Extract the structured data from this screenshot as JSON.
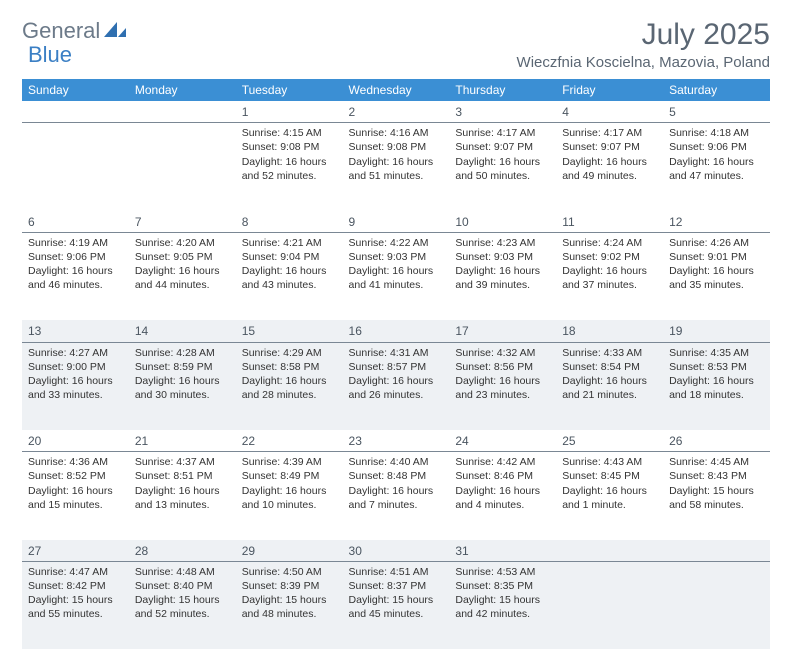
{
  "brand": {
    "part1": "General",
    "part2": "Blue"
  },
  "title": "July 2025",
  "location": "Wieczfnia Koscielna, Mazovia, Poland",
  "colors": {
    "header_bg": "#3b8fd4",
    "header_text": "#ffffff",
    "logo_gray": "#6c7a89",
    "logo_blue": "#3b7fc4",
    "shaded_bg": "#eef1f4",
    "border": "#7a8794",
    "text": "#333333"
  },
  "weekdays": [
    "Sunday",
    "Monday",
    "Tuesday",
    "Wednesday",
    "Thursday",
    "Friday",
    "Saturday"
  ],
  "weeks": [
    {
      "shaded": false,
      "days": [
        {
          "num": "",
          "lines": [
            "",
            "",
            "",
            ""
          ]
        },
        {
          "num": "",
          "lines": [
            "",
            "",
            "",
            ""
          ]
        },
        {
          "num": "1",
          "lines": [
            "Sunrise: 4:15 AM",
            "Sunset: 9:08 PM",
            "Daylight: 16 hours",
            "and 52 minutes."
          ]
        },
        {
          "num": "2",
          "lines": [
            "Sunrise: 4:16 AM",
            "Sunset: 9:08 PM",
            "Daylight: 16 hours",
            "and 51 minutes."
          ]
        },
        {
          "num": "3",
          "lines": [
            "Sunrise: 4:17 AM",
            "Sunset: 9:07 PM",
            "Daylight: 16 hours",
            "and 50 minutes."
          ]
        },
        {
          "num": "4",
          "lines": [
            "Sunrise: 4:17 AM",
            "Sunset: 9:07 PM",
            "Daylight: 16 hours",
            "and 49 minutes."
          ]
        },
        {
          "num": "5",
          "lines": [
            "Sunrise: 4:18 AM",
            "Sunset: 9:06 PM",
            "Daylight: 16 hours",
            "and 47 minutes."
          ]
        }
      ]
    },
    {
      "shaded": false,
      "days": [
        {
          "num": "6",
          "lines": [
            "Sunrise: 4:19 AM",
            "Sunset: 9:06 PM",
            "Daylight: 16 hours",
            "and 46 minutes."
          ]
        },
        {
          "num": "7",
          "lines": [
            "Sunrise: 4:20 AM",
            "Sunset: 9:05 PM",
            "Daylight: 16 hours",
            "and 44 minutes."
          ]
        },
        {
          "num": "8",
          "lines": [
            "Sunrise: 4:21 AM",
            "Sunset: 9:04 PM",
            "Daylight: 16 hours",
            "and 43 minutes."
          ]
        },
        {
          "num": "9",
          "lines": [
            "Sunrise: 4:22 AM",
            "Sunset: 9:03 PM",
            "Daylight: 16 hours",
            "and 41 minutes."
          ]
        },
        {
          "num": "10",
          "lines": [
            "Sunrise: 4:23 AM",
            "Sunset: 9:03 PM",
            "Daylight: 16 hours",
            "and 39 minutes."
          ]
        },
        {
          "num": "11",
          "lines": [
            "Sunrise: 4:24 AM",
            "Sunset: 9:02 PM",
            "Daylight: 16 hours",
            "and 37 minutes."
          ]
        },
        {
          "num": "12",
          "lines": [
            "Sunrise: 4:26 AM",
            "Sunset: 9:01 PM",
            "Daylight: 16 hours",
            "and 35 minutes."
          ]
        }
      ]
    },
    {
      "shaded": true,
      "days": [
        {
          "num": "13",
          "lines": [
            "Sunrise: 4:27 AM",
            "Sunset: 9:00 PM",
            "Daylight: 16 hours",
            "and 33 minutes."
          ]
        },
        {
          "num": "14",
          "lines": [
            "Sunrise: 4:28 AM",
            "Sunset: 8:59 PM",
            "Daylight: 16 hours",
            "and 30 minutes."
          ]
        },
        {
          "num": "15",
          "lines": [
            "Sunrise: 4:29 AM",
            "Sunset: 8:58 PM",
            "Daylight: 16 hours",
            "and 28 minutes."
          ]
        },
        {
          "num": "16",
          "lines": [
            "Sunrise: 4:31 AM",
            "Sunset: 8:57 PM",
            "Daylight: 16 hours",
            "and 26 minutes."
          ]
        },
        {
          "num": "17",
          "lines": [
            "Sunrise: 4:32 AM",
            "Sunset: 8:56 PM",
            "Daylight: 16 hours",
            "and 23 minutes."
          ]
        },
        {
          "num": "18",
          "lines": [
            "Sunrise: 4:33 AM",
            "Sunset: 8:54 PM",
            "Daylight: 16 hours",
            "and 21 minutes."
          ]
        },
        {
          "num": "19",
          "lines": [
            "Sunrise: 4:35 AM",
            "Sunset: 8:53 PM",
            "Daylight: 16 hours",
            "and 18 minutes."
          ]
        }
      ]
    },
    {
      "shaded": false,
      "days": [
        {
          "num": "20",
          "lines": [
            "Sunrise: 4:36 AM",
            "Sunset: 8:52 PM",
            "Daylight: 16 hours",
            "and 15 minutes."
          ]
        },
        {
          "num": "21",
          "lines": [
            "Sunrise: 4:37 AM",
            "Sunset: 8:51 PM",
            "Daylight: 16 hours",
            "and 13 minutes."
          ]
        },
        {
          "num": "22",
          "lines": [
            "Sunrise: 4:39 AM",
            "Sunset: 8:49 PM",
            "Daylight: 16 hours",
            "and 10 minutes."
          ]
        },
        {
          "num": "23",
          "lines": [
            "Sunrise: 4:40 AM",
            "Sunset: 8:48 PM",
            "Daylight: 16 hours",
            "and 7 minutes."
          ]
        },
        {
          "num": "24",
          "lines": [
            "Sunrise: 4:42 AM",
            "Sunset: 8:46 PM",
            "Daylight: 16 hours",
            "and 4 minutes."
          ]
        },
        {
          "num": "25",
          "lines": [
            "Sunrise: 4:43 AM",
            "Sunset: 8:45 PM",
            "Daylight: 16 hours",
            "and 1 minute."
          ]
        },
        {
          "num": "26",
          "lines": [
            "Sunrise: 4:45 AM",
            "Sunset: 8:43 PM",
            "Daylight: 15 hours",
            "and 58 minutes."
          ]
        }
      ]
    },
    {
      "shaded": true,
      "days": [
        {
          "num": "27",
          "lines": [
            "Sunrise: 4:47 AM",
            "Sunset: 8:42 PM",
            "Daylight: 15 hours",
            "and 55 minutes."
          ]
        },
        {
          "num": "28",
          "lines": [
            "Sunrise: 4:48 AM",
            "Sunset: 8:40 PM",
            "Daylight: 15 hours",
            "and 52 minutes."
          ]
        },
        {
          "num": "29",
          "lines": [
            "Sunrise: 4:50 AM",
            "Sunset: 8:39 PM",
            "Daylight: 15 hours",
            "and 48 minutes."
          ]
        },
        {
          "num": "30",
          "lines": [
            "Sunrise: 4:51 AM",
            "Sunset: 8:37 PM",
            "Daylight: 15 hours",
            "and 45 minutes."
          ]
        },
        {
          "num": "31",
          "lines": [
            "Sunrise: 4:53 AM",
            "Sunset: 8:35 PM",
            "Daylight: 15 hours",
            "and 42 minutes."
          ]
        },
        {
          "num": "",
          "lines": [
            "",
            "",
            "",
            ""
          ]
        },
        {
          "num": "",
          "lines": [
            "",
            "",
            "",
            ""
          ]
        }
      ]
    }
  ]
}
